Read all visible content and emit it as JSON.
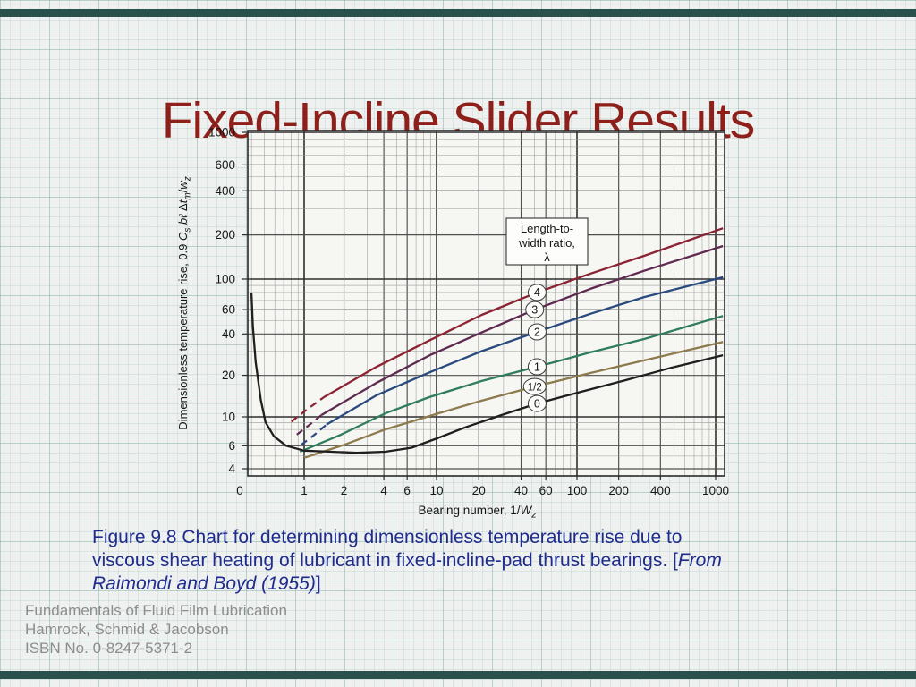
{
  "slide": {
    "title": "Fixed-Incline Slider Results",
    "title_color": "#8e201c",
    "accent_bar_color": "#2b514d",
    "caption": {
      "color": "#1f2b8e",
      "line1": "Figure 9.8   Chart for determining dimensionless temperature rise due to",
      "line2_normal": "viscous shear heating of lubricant in fixed-incline-pad thrust bearings. [",
      "line2_italic": "From",
      "line3_italic": "Raimondi and Boyd (1955)",
      "line3_close": "]"
    },
    "footer": {
      "color": "#8d8d8d",
      "lines": [
        "Fundamentals of Fluid Film Lubrication",
        "Hamrock, Schmid & Jacobson",
        "ISBN No. 0-8247-5371-2"
      ]
    }
  },
  "chart_data": {
    "type": "line",
    "x_scale": "log",
    "y_scale": "log",
    "title": "",
    "xlabel_parts": [
      {
        "t": "Bearing number, 1/"
      },
      {
        "t": "W",
        "i": true
      },
      {
        "t": "z",
        "i": true,
        "sub": true
      }
    ],
    "ylabel_parts": [
      {
        "t": "Dimensionless temperature rise, 0.9 "
      },
      {
        "t": "C",
        "i": true
      },
      {
        "t": "s",
        "i": true,
        "sub": true
      },
      {
        "t": " b",
        "i": true
      },
      {
        "t": "ℓ",
        "i": true
      },
      {
        "t": " Δ"
      },
      {
        "t": "t",
        "i": true
      },
      {
        "t": "m",
        "i": true,
        "sub": true
      },
      {
        "t": "/"
      },
      {
        "t": "w",
        "i": true
      },
      {
        "t": "z",
        "i": true,
        "sub": true
      }
    ],
    "x_origin_label": "0",
    "x_ticks": [
      1,
      2,
      4,
      6,
      10,
      20,
      40,
      60,
      100,
      200,
      400,
      1000
    ],
    "y_ticks": [
      4,
      6,
      10,
      20,
      40,
      60,
      100,
      200,
      400,
      600,
      1000
    ],
    "x_decades": [
      1,
      10,
      100,
      1000
    ],
    "y_decades": [
      10,
      100,
      1000
    ],
    "xlim": [
      0.375,
      1160
    ],
    "ylim": [
      3.53,
      1029
    ],
    "grid": "log-log dense minor and major lines",
    "legend_box": {
      "lines": [
        "Length-to-",
        "width ratio,",
        "λ"
      ],
      "px": [
        566,
        244,
        91,
        52
      ]
    },
    "pixel_calibration": {
      "x_anchors": [
        [
          0.375,
          277
        ],
        [
          1,
          340
        ],
        [
          10,
          488
        ],
        [
          100,
          645
        ],
        [
          1000,
          800
        ],
        [
          1160,
          810
        ]
      ],
      "y_anchors": [
        [
          3.53,
          532
        ],
        [
          4,
          524
        ],
        [
          10,
          466
        ],
        [
          100,
          312
        ],
        [
          1000,
          148
        ]
      ],
      "frame": [
        277,
        146,
        533,
        386
      ]
    },
    "series": [
      {
        "name": "lambda = 4",
        "label": "4",
        "color": "#8b2332",
        "dashed_points": [
          [
            0.8,
            9.2
          ],
          [
            1.05,
            11.3
          ],
          [
            1.41,
            13.9
          ]
        ],
        "points": [
          [
            1.41,
            13.9
          ],
          [
            3.5,
            23
          ],
          [
            8.9,
            36
          ],
          [
            21,
            55
          ],
          [
            52,
            80
          ],
          [
            125,
            109
          ],
          [
            305,
            144
          ],
          [
            1130,
            222
          ]
        ],
        "label_at": [
          52,
          80
        ]
      },
      {
        "name": "lambda = 3",
        "label": "3",
        "color": "#5e2a50",
        "dashed_points": [
          [
            0.88,
            7.3
          ],
          [
            1.1,
            8.7
          ],
          [
            1.35,
            10.3
          ]
        ],
        "points": [
          [
            1.35,
            10.3
          ],
          [
            3.5,
            17.6
          ],
          [
            8.9,
            28
          ],
          [
            21,
            41
          ],
          [
            50,
            60
          ],
          [
            125,
            85
          ],
          [
            305,
            114
          ],
          [
            1130,
            168
          ]
        ],
        "label_at": [
          50,
          60
        ]
      },
      {
        "name": "lambda = 2",
        "label": "2",
        "color": "#2a4a7e",
        "dashed_points": [
          [
            0.95,
            6.1
          ],
          [
            1.2,
            7.3
          ],
          [
            1.47,
            8.7
          ]
        ],
        "points": [
          [
            1.47,
            8.7
          ],
          [
            3.5,
            14.3
          ],
          [
            8.8,
            21
          ],
          [
            21,
            30
          ],
          [
            52,
            41.4
          ],
          [
            125,
            56
          ],
          [
            305,
            74
          ],
          [
            1130,
            103
          ]
        ],
        "label_at": [
          52,
          41.4
        ]
      },
      {
        "name": "lambda = 1",
        "label": "1",
        "color": "#2f7d5d",
        "dashed_points": [],
        "points": [
          [
            0.93,
            5.4
          ],
          [
            1.9,
            7.3
          ],
          [
            4.1,
            10.6
          ],
          [
            8.8,
            13.9
          ],
          [
            21,
            18.2
          ],
          [
            52,
            23.1
          ],
          [
            125,
            29.4
          ],
          [
            305,
            36.7
          ],
          [
            1130,
            54
          ]
        ],
        "label_at": [
          52,
          23.1
        ]
      },
      {
        "name": "lambda = 1/2",
        "label": "1/2",
        "color": "#8d7b4d",
        "dashed_points": [],
        "points": [
          [
            1.0,
            4.85
          ],
          [
            2.0,
            6.1
          ],
          [
            4.1,
            8.0
          ],
          [
            10.3,
            10.6
          ],
          [
            21,
            13.1
          ],
          [
            50,
            16.6
          ],
          [
            125,
            20.8
          ],
          [
            305,
            25.7
          ],
          [
            1130,
            35
          ]
        ],
        "label_at": [
          50,
          16.6
        ]
      },
      {
        "name": "lambda = 0",
        "label": "0",
        "color": "#1f1f1f",
        "dashed_points": [],
        "points": [
          [
            0.4,
            79
          ],
          [
            0.41,
            45
          ],
          [
            0.43,
            25
          ],
          [
            0.47,
            13.3
          ],
          [
            0.51,
            9.1
          ],
          [
            0.59,
            7.1
          ],
          [
            0.73,
            6.0
          ],
          [
            1.0,
            5.5
          ],
          [
            1.6,
            5.4
          ],
          [
            2.5,
            5.3
          ],
          [
            4.1,
            5.4
          ],
          [
            6.5,
            5.8
          ],
          [
            10.3,
            6.9
          ],
          [
            16,
            8.3
          ],
          [
            29,
            10.3
          ],
          [
            52,
            12.5
          ],
          [
            107,
            15.2
          ],
          [
            226,
            18.5
          ],
          [
            476,
            22.7
          ],
          [
            1130,
            28
          ]
        ],
        "label_at": [
          52,
          12.5
        ]
      }
    ]
  }
}
